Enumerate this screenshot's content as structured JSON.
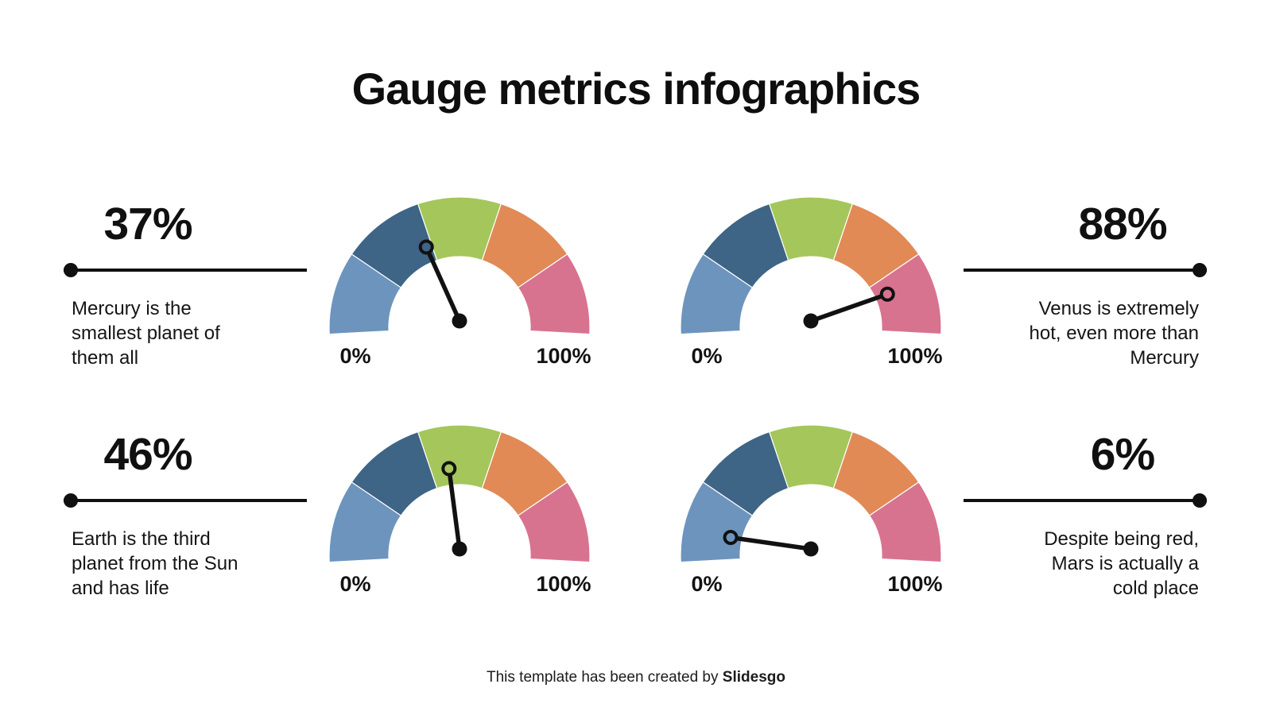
{
  "title": "Gauge metrics infographics",
  "footer": {
    "prefix": "This template has been created by ",
    "brand": "Slidesgo"
  },
  "gauge_style": {
    "segment_colors": [
      "#6D94BD",
      "#3E6486",
      "#A5C65A",
      "#E18A56",
      "#D8738F"
    ],
    "segment_names": [
      "light-blue",
      "dark-blue",
      "green",
      "orange",
      "pink"
    ],
    "needle_color": "#111111"
  },
  "chart_data": [
    {
      "type": "gauge",
      "value": 37,
      "value_label": "37%",
      "description": "Mercury is the smallest planet of them all",
      "min": 0,
      "max": 100,
      "min_label": "0%",
      "max_label": "100%",
      "segments": 5,
      "position": "top-left"
    },
    {
      "type": "gauge",
      "value": 88,
      "value_label": "88%",
      "description": "Venus is extremely hot, even more than Mercury",
      "min": 0,
      "max": 100,
      "min_label": "0%",
      "max_label": "100%",
      "segments": 5,
      "position": "top-right"
    },
    {
      "type": "gauge",
      "value": 46,
      "value_label": "46%",
      "description": "Earth is the third planet from the Sun and has life",
      "min": 0,
      "max": 100,
      "min_label": "0%",
      "max_label": "100%",
      "segments": 5,
      "position": "bottom-left"
    },
    {
      "type": "gauge",
      "value": 6,
      "value_label": "6%",
      "description": "Despite being red, Mars is actually a cold place",
      "min": 0,
      "max": 100,
      "min_label": "0%",
      "max_label": "100%",
      "segments": 5,
      "position": "bottom-right"
    }
  ]
}
